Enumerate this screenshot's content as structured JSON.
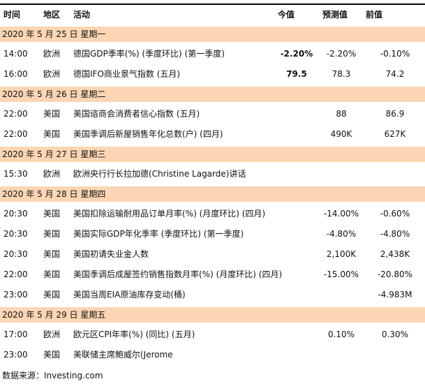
{
  "header": {
    "time": "时间",
    "region": "地区",
    "activity": "活动",
    "actual": "今值",
    "forecast": "预测值",
    "previous": "前值"
  },
  "colors": {
    "date_band": "#fcd5b4",
    "border": "#000000"
  },
  "sections": [
    {
      "date": "2020 年 5 月 25 日  星期一",
      "rows": [
        {
          "time": "14:00",
          "region": "欧洲",
          "activity": "德国GDP季率(%) (季度环比) (第一季度)",
          "actual": "-2.20%",
          "forecast": "-2.20%",
          "previous": "-0.10%"
        },
        {
          "time": "16:00",
          "region": "欧洲",
          "activity": "德国IFO商业景气指数 (五月)",
          "actual": "79.5",
          "forecast": "78.3",
          "previous": "74.2"
        }
      ]
    },
    {
      "date": "2020 年 5 月 26 日  星期二",
      "rows": [
        {
          "time": "22:00",
          "region": "美国",
          "activity": "美国谘商会消费者信心指数 (五月)",
          "actual": "",
          "forecast": "88",
          "previous": "86.9"
        },
        {
          "time": "22:00",
          "region": "美国",
          "activity": "美国季调后新屋销售年化总数(户) (四月)",
          "actual": "",
          "forecast": "490K",
          "previous": "627K"
        }
      ]
    },
    {
      "date": "2020 年 5 月 27 日  星期三",
      "rows": [
        {
          "time": "15:30",
          "region": "欧洲",
          "activity": "欧洲央行行长拉加德(Christine Lagarde)讲话",
          "actual": "",
          "forecast": "",
          "previous": ""
        }
      ]
    },
    {
      "date": "2020 年 5 月 28 日  星期四",
      "rows": [
        {
          "time": "20:30",
          "region": "美国",
          "activity": "美国扣除运输耐用品订单月率(%) (月度环比) (四月)",
          "actual": "",
          "forecast": "-14.00%",
          "previous": "-0.60%"
        },
        {
          "time": "20:30",
          "region": "美国",
          "activity": "美国实际GDP年化季率 (季度环比) (第一季度)",
          "actual": "",
          "forecast": "-4.80%",
          "previous": "-4.80%"
        },
        {
          "time": "20:30",
          "region": "美国",
          "activity": "美国初请失业金人数",
          "actual": "",
          "forecast": "2,100K",
          "previous": "2,438K"
        },
        {
          "time": "22:00",
          "region": "美国",
          "activity": "美国季调后成屋签约销售指数月率(%) (月度环比) (四月)",
          "actual": "",
          "forecast": "-15.00%",
          "previous": "-20.80%"
        },
        {
          "time": "23:00",
          "region": "美国",
          "activity": "美国当周EIA原油库存变动(桶)",
          "actual": "",
          "forecast": "",
          "previous": "-4.983M"
        }
      ]
    },
    {
      "date": "2020 年 5 月 29 日  星期五",
      "rows": [
        {
          "time": "17:00",
          "region": "欧洲",
          "activity": "欧元区CPI年率(%) (同比) (五月)",
          "actual": "",
          "forecast": "0.10%",
          "previous": "0.30%"
        },
        {
          "time": "23:00",
          "region": "美国",
          "activity": "美联储主席鲍威尔(Jerome",
          "actual": "",
          "forecast": "",
          "previous": ""
        }
      ]
    }
  ],
  "source": "数据来源：Investing.com"
}
